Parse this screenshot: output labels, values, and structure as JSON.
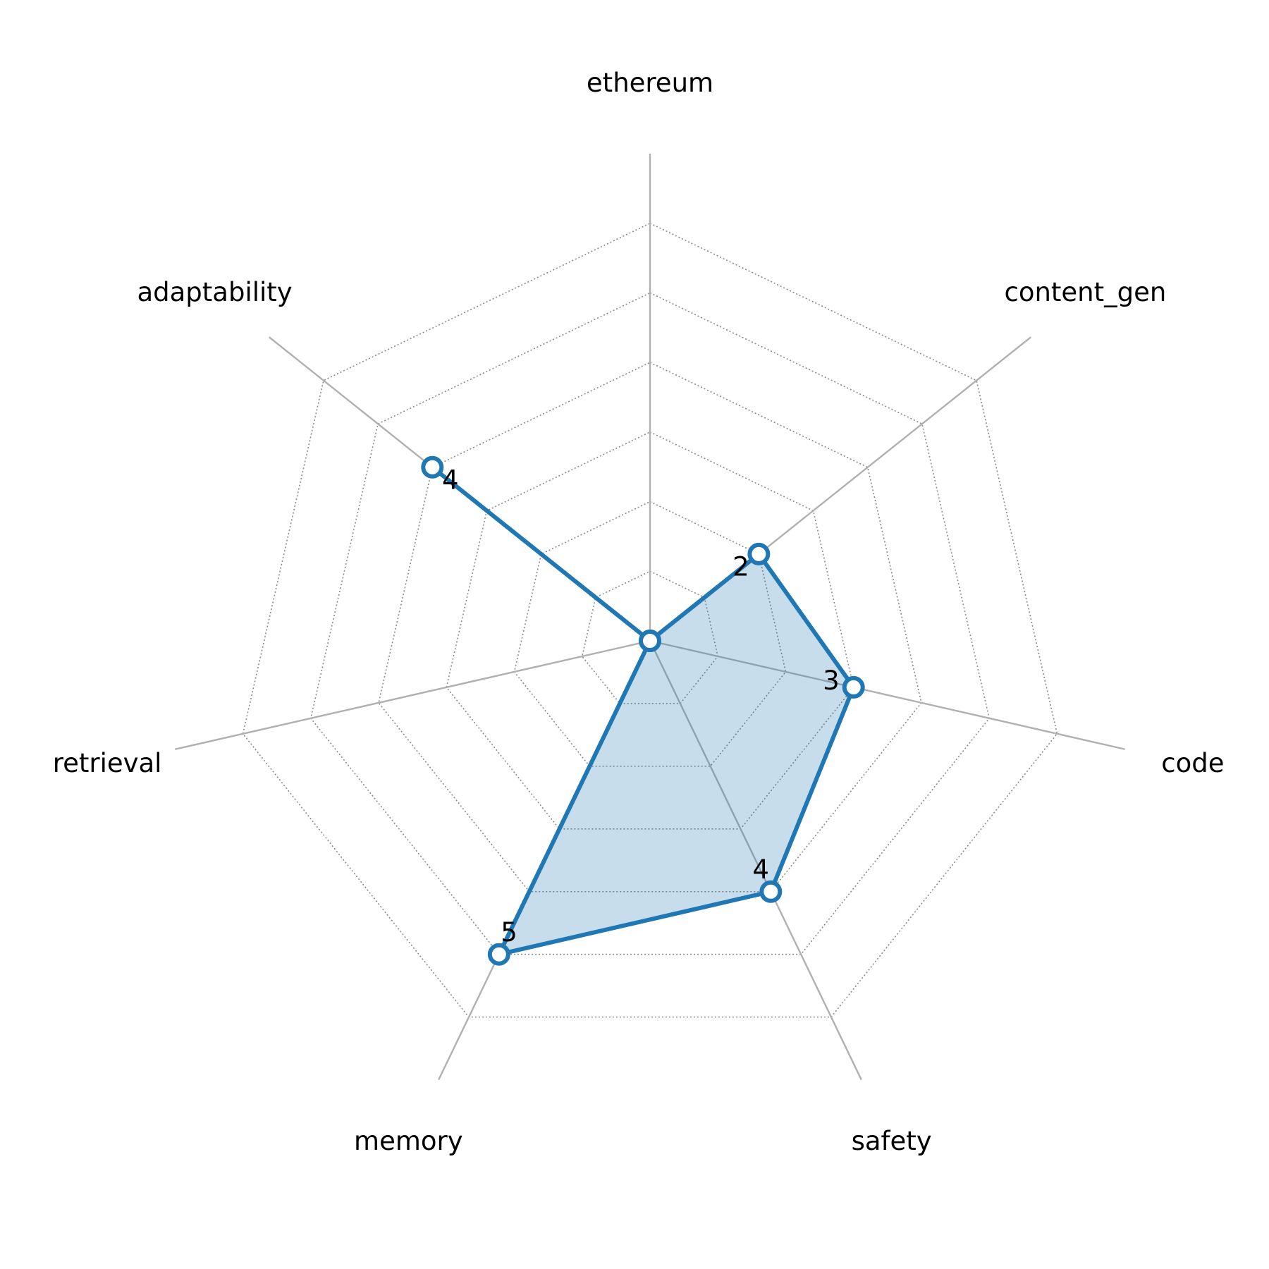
{
  "chart_data": {
    "type": "radar",
    "categories": [
      "ethereum",
      "content_gen",
      "code",
      "safety",
      "memory",
      "retrieval",
      "adaptability"
    ],
    "series": [
      {
        "color": "#1f77b4",
        "values": [
          0,
          2,
          3,
          4,
          5,
          0,
          4
        ]
      }
    ],
    "rlim": [
      0,
      7
    ],
    "rticks": [
      1,
      2,
      3,
      4,
      5,
      6
    ],
    "grid": true
  }
}
